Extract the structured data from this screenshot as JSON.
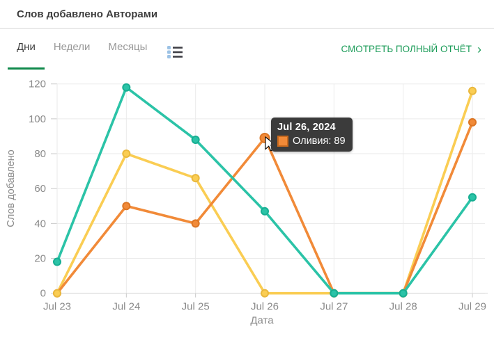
{
  "header": {
    "title": "Слов добавлено Авторами"
  },
  "tabs": {
    "items": [
      {
        "label": "Дни",
        "active": true
      },
      {
        "label": "Недели",
        "active": false
      },
      {
        "label": "Месяцы",
        "active": false
      }
    ]
  },
  "report_link": {
    "label": "СМОТРЕТЬ ПОЛНЫЙ ОТЧЁТ",
    "chevron": "›"
  },
  "tooltip": {
    "title": "Jul 26, 2024",
    "series_label": "Оливия: 89",
    "swatch_color": "#f18a38",
    "swatch_border": "#c96a1e"
  },
  "colors": {
    "accent_green": "#1c9c59",
    "tab_underline_green": "#10894b",
    "grid": "#eaeaea",
    "axis": "#d8d8d8",
    "tick": "#c9c9c9",
    "axis_text": "#8a8a8a",
    "tooltip_bg": "#3b3b3b"
  },
  "chart_data": {
    "type": "line",
    "x": [
      "Jul 23",
      "Jul 24",
      "Jul 25",
      "Jul 26",
      "Jul 27",
      "Jul 28",
      "Jul 29"
    ],
    "series": [
      {
        "id": "yellow",
        "name": "",
        "color": "#facd53",
        "marker_stroke": "#e9b83e",
        "values": [
          0,
          80,
          66,
          0,
          0,
          0,
          116
        ]
      },
      {
        "id": "orange",
        "name": "Оливия",
        "color": "#f18a38",
        "marker_stroke": "#db7524",
        "values": [
          0,
          50,
          40,
          89,
          0,
          0,
          98
        ]
      },
      {
        "id": "teal",
        "name": "",
        "color": "#2bc3a7",
        "marker_stroke": "#17ae92",
        "values": [
          18,
          118,
          88,
          47,
          0,
          0,
          55
        ]
      }
    ],
    "marker_order": [
      "orange",
      "yellow",
      "teal"
    ],
    "hover": {
      "series": "orange",
      "index": 3,
      "value": 89
    },
    "xlabel": "Дата",
    "ylabel": "Слов добавлено",
    "ylim": [
      0,
      120
    ],
    "ytick_step": 20,
    "grid": true,
    "legend_position": "none"
  }
}
